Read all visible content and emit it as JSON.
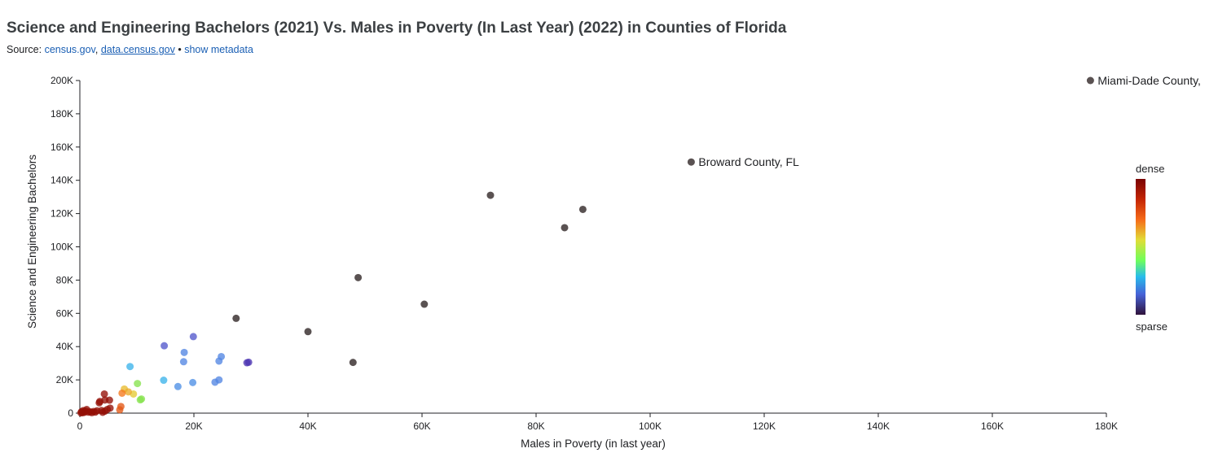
{
  "header": {
    "title": "Science and Engineering Bachelors (2021) Vs. Males in Poverty (In Last Year) (2022) in Counties of Florida",
    "source_prefix": "Source: ",
    "source_link_1": "census.gov",
    "source_sep": ", ",
    "source_link_2": "data.census.gov",
    "source_dot": " • ",
    "show_metadata": "show metadata"
  },
  "legend": {
    "top_label": "dense",
    "bottom_label": "sparse"
  },
  "chart_data": {
    "type": "scatter",
    "xlabel": "Males in Poverty (in last year)",
    "ylabel": "Science and Engineering Bachelors",
    "xlim": [
      0,
      180000
    ],
    "ylim": [
      0,
      200000
    ],
    "x_ticks": [
      0,
      20000,
      40000,
      60000,
      80000,
      100000,
      120000,
      140000,
      160000,
      180000
    ],
    "x_tick_labels": [
      "0",
      "20K",
      "40K",
      "60K",
      "80K",
      "100K",
      "120K",
      "140K",
      "160K",
      "180K"
    ],
    "y_ticks": [
      0,
      20000,
      40000,
      60000,
      80000,
      100000,
      120000,
      140000,
      160000,
      180000,
      200000
    ],
    "y_tick_labels": [
      "0",
      "20K",
      "40K",
      "60K",
      "80K",
      "100K",
      "120K",
      "140K",
      "160K",
      "180K",
      "200K"
    ],
    "color_encoding": "point density (dense to sparse)",
    "points": [
      {
        "x": 177200,
        "y": 200000,
        "density": 0.0,
        "label": "Miami-Dade County,"
      },
      {
        "x": 107200,
        "y": 151000,
        "density": 0.0,
        "label": "Broward County, FL"
      },
      {
        "x": 72000,
        "y": 131000,
        "density": 0.0
      },
      {
        "x": 88200,
        "y": 122500,
        "density": 0.0
      },
      {
        "x": 85000,
        "y": 111500,
        "density": 0.0
      },
      {
        "x": 48800,
        "y": 81500,
        "density": 0.0
      },
      {
        "x": 60400,
        "y": 65500,
        "density": 0.0
      },
      {
        "x": 27400,
        "y": 57000,
        "density": 0.0
      },
      {
        "x": 40000,
        "y": 49000,
        "density": 0.0
      },
      {
        "x": 47900,
        "y": 30500,
        "density": 0.0
      },
      {
        "x": 29300,
        "y": 30300,
        "density": 0.14
      },
      {
        "x": 29600,
        "y": 30600,
        "density": 0.14
      },
      {
        "x": 19900,
        "y": 46000,
        "density": 0.2
      },
      {
        "x": 14800,
        "y": 40500,
        "density": 0.2
      },
      {
        "x": 18300,
        "y": 36500,
        "density": 0.28
      },
      {
        "x": 24800,
        "y": 34000,
        "density": 0.28
      },
      {
        "x": 18200,
        "y": 30900,
        "density": 0.28
      },
      {
        "x": 24400,
        "y": 31300,
        "density": 0.28
      },
      {
        "x": 24400,
        "y": 20000,
        "density": 0.28
      },
      {
        "x": 23700,
        "y": 18600,
        "density": 0.28
      },
      {
        "x": 19800,
        "y": 18400,
        "density": 0.3
      },
      {
        "x": 17200,
        "y": 16000,
        "density": 0.3
      },
      {
        "x": 8800,
        "y": 28000,
        "density": 0.38
      },
      {
        "x": 14700,
        "y": 19800,
        "density": 0.38
      },
      {
        "x": 10100,
        "y": 17800,
        "density": 0.6
      },
      {
        "x": 10800,
        "y": 8500,
        "density": 0.6
      },
      {
        "x": 10600,
        "y": 8000,
        "density": 0.6
      },
      {
        "x": 9400,
        "y": 11500,
        "density": 0.72
      },
      {
        "x": 7800,
        "y": 14500,
        "density": 0.74
      },
      {
        "x": 8500,
        "y": 12800,
        "density": 0.76
      },
      {
        "x": 7400,
        "y": 12000,
        "density": 0.82
      },
      {
        "x": 7200,
        "y": 4000,
        "density": 0.86
      },
      {
        "x": 7000,
        "y": 2000,
        "density": 0.86
      },
      {
        "x": 4300,
        "y": 11500,
        "density": 0.98
      },
      {
        "x": 3500,
        "y": 7000,
        "density": 0.98
      },
      {
        "x": 3400,
        "y": 6200,
        "density": 0.98
      },
      {
        "x": 5200,
        "y": 7800,
        "density": 0.98
      },
      {
        "x": 4400,
        "y": 7900,
        "density": 0.98
      },
      {
        "x": 5300,
        "y": 3000,
        "density": 0.98
      },
      {
        "x": 4800,
        "y": 2200,
        "density": 0.98
      },
      {
        "x": 4400,
        "y": 1200,
        "density": 0.98
      },
      {
        "x": 3800,
        "y": 1600,
        "density": 0.98
      },
      {
        "x": 3000,
        "y": 1400,
        "density": 0.98
      },
      {
        "x": 2400,
        "y": 1000,
        "density": 0.98
      },
      {
        "x": 1800,
        "y": 800,
        "density": 0.98
      },
      {
        "x": 1200,
        "y": 2200,
        "density": 0.98
      },
      {
        "x": 1000,
        "y": 1300,
        "density": 0.98
      },
      {
        "x": 800,
        "y": 500,
        "density": 0.98
      },
      {
        "x": 600,
        "y": 1500,
        "density": 0.98
      },
      {
        "x": 500,
        "y": 300,
        "density": 0.98
      },
      {
        "x": 300,
        "y": 900,
        "density": 0.98
      },
      {
        "x": 200,
        "y": 200,
        "density": 0.98
      },
      {
        "x": 2100,
        "y": 300,
        "density": 0.98
      },
      {
        "x": 1500,
        "y": 600,
        "density": 0.98
      },
      {
        "x": 2700,
        "y": 600,
        "density": 0.98
      },
      {
        "x": 4000,
        "y": 500,
        "density": 0.98
      }
    ]
  }
}
